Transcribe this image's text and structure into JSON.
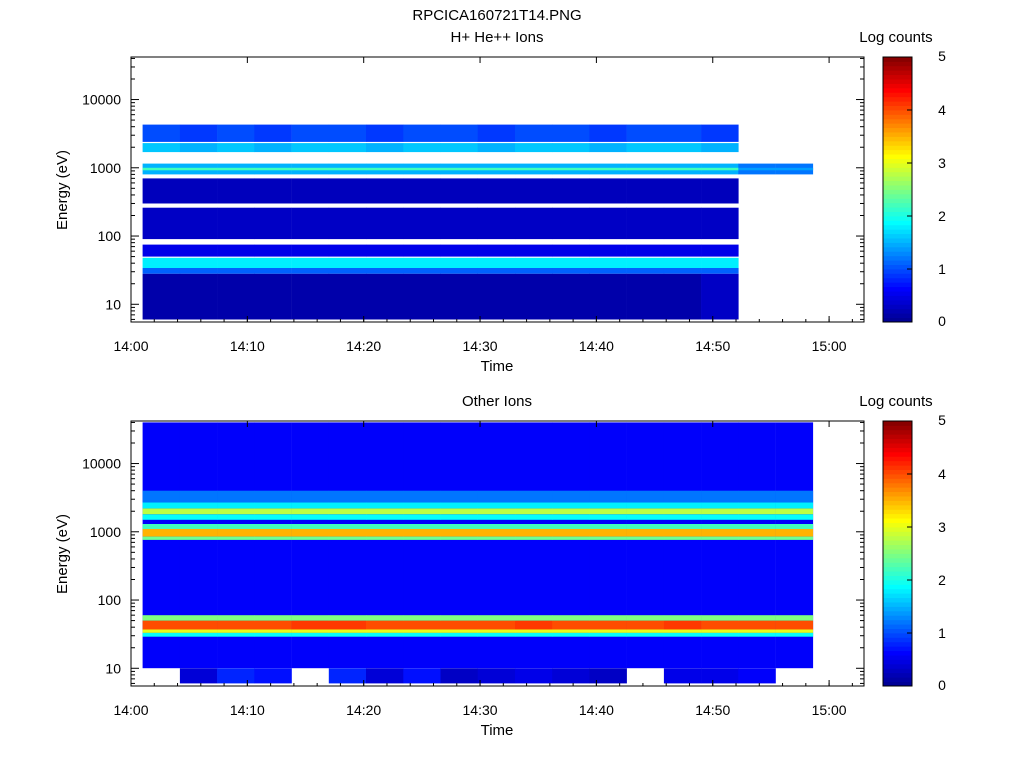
{
  "figure_title": "RPCICA160721T14.PNG",
  "colors": {
    "colormap": [
      "#00008f",
      "#0000ff",
      "#007fff",
      "#00ffff",
      "#7fff7f",
      "#ffff00",
      "#ff7f00",
      "#ff0000",
      "#7f0000"
    ],
    "axes": "#000000",
    "background": "#ffffff"
  },
  "chart_data": [
    {
      "type": "heatmap",
      "title": "H+ He++ Ions",
      "xlabel": "Time",
      "ylabel": "Energy (eV)",
      "y_scale": "log",
      "xlim": [
        "14:00",
        "15:03"
      ],
      "ylim": [
        5.5,
        42000
      ],
      "x_ticks": [
        "14:00",
        "14:10",
        "14:20",
        "14:30",
        "14:40",
        "14:50",
        "15:00"
      ],
      "y_ticks": [
        "10",
        "100",
        "1000",
        "10000"
      ],
      "colorbar": {
        "label": "Log counts",
        "range": [
          0,
          5
        ],
        "ticks": [
          "0",
          "1",
          "2",
          "3",
          "4",
          "5"
        ]
      },
      "time_bins": [
        "14:02:36",
        "14:05:48",
        "14:09:00",
        "14:12:12",
        "14:15:24",
        "14:18:36",
        "14:21:48",
        "14:25:00",
        "14:28:12",
        "14:31:24",
        "14:34:36",
        "14:37:48",
        "14:41:00",
        "14:44:12",
        "14:47:24",
        "14:50:36",
        "14:53:48",
        "14:57:00"
      ],
      "bands": [
        {
          "lo": 800,
          "hi": 1150,
          "log_counts": [
            1.5,
            1.5,
            1.5,
            1.5,
            1.5,
            1.5,
            1.5,
            1.5,
            1.5,
            1.5,
            1.5,
            1.5,
            1.5,
            1.5,
            1.5,
            1.5,
            1.2,
            1.2
          ]
        },
        {
          "lo": 920,
          "hi": 1000,
          "log_counts": [
            2.2,
            2.2,
            2.2,
            2.2,
            2.2,
            2.2,
            2.2,
            2.2,
            2.2,
            2.2,
            2.2,
            2.2,
            2.2,
            2.2,
            2.2,
            2.2,
            1.4,
            1.4
          ]
        },
        {
          "lo": 1700,
          "hi": 2300,
          "log_counts": [
            1.6,
            1.5,
            1.6,
            1.5,
            1.6,
            1.6,
            1.5,
            1.6,
            1.6,
            1.5,
            1.6,
            1.6,
            1.5,
            1.6,
            1.6,
            1.5,
            null,
            null
          ]
        },
        {
          "lo": 2400,
          "hi": 4300,
          "log_counts": [
            1.0,
            0.9,
            1.0,
            0.9,
            1.0,
            1.0,
            0.9,
            1.0,
            1.0,
            0.9,
            1.0,
            1.0,
            0.9,
            1.0,
            1.0,
            0.9,
            null,
            null
          ]
        },
        {
          "lo": 34,
          "hi": 48,
          "log_counts": [
            1.8,
            1.8,
            1.8,
            1.8,
            1.8,
            1.8,
            1.8,
            1.8,
            1.8,
            1.8,
            1.8,
            1.8,
            1.8,
            1.8,
            1.8,
            1.8,
            null,
            null
          ]
        },
        {
          "lo": 28,
          "hi": 34,
          "log_counts": [
            1.1,
            1.1,
            1.1,
            1.1,
            1.1,
            1.1,
            1.1,
            1.1,
            1.1,
            1.1,
            1.1,
            1.1,
            1.1,
            1.1,
            1.1,
            1.1,
            null,
            null
          ]
        },
        {
          "lo": 50,
          "hi": 75,
          "log_counts": [
            0.5,
            0.5,
            0.5,
            0.5,
            0.5,
            0.5,
            0.5,
            0.5,
            0.5,
            0.5,
            0.5,
            0.5,
            0.5,
            0.5,
            0.5,
            0.5,
            null,
            null
          ]
        },
        {
          "lo": 90,
          "hi": 260,
          "log_counts": [
            0.3,
            0.3,
            0.3,
            0.3,
            0.3,
            0.3,
            0.3,
            0.3,
            0.3,
            0.3,
            0.3,
            0.3,
            0.3,
            0.3,
            0.3,
            0.3,
            null,
            null
          ]
        },
        {
          "lo": 300,
          "hi": 700,
          "log_counts": [
            0.25,
            0.25,
            0.25,
            0.25,
            0.25,
            0.25,
            0.25,
            0.25,
            0.25,
            0.25,
            0.25,
            0.25,
            0.25,
            0.25,
            0.25,
            0.25,
            null,
            null
          ]
        },
        {
          "lo": 6,
          "hi": 28,
          "log_counts": [
            0.15,
            0.15,
            0.15,
            0.15,
            0.15,
            0.15,
            0.15,
            0.15,
            0.15,
            0.15,
            0.15,
            0.15,
            0.15,
            0.15,
            0.15,
            0.3,
            null,
            null
          ]
        }
      ]
    },
    {
      "type": "heatmap",
      "title": "Other Ions",
      "xlabel": "Time",
      "ylabel": "Energy (eV)",
      "y_scale": "log",
      "xlim": [
        "14:00",
        "15:03"
      ],
      "ylim": [
        5.5,
        42000
      ],
      "x_ticks": [
        "14:00",
        "14:10",
        "14:20",
        "14:30",
        "14:40",
        "14:50",
        "15:00"
      ],
      "y_ticks": [
        "10",
        "100",
        "1000",
        "10000"
      ],
      "colorbar": {
        "label": "Log counts",
        "range": [
          0,
          5
        ],
        "ticks": [
          "0",
          "1",
          "2",
          "3",
          "4",
          "5"
        ]
      },
      "time_bins": [
        "14:02:36",
        "14:05:48",
        "14:09:00",
        "14:12:12",
        "14:15:24",
        "14:18:36",
        "14:21:48",
        "14:25:00",
        "14:28:12",
        "14:31:24",
        "14:34:36",
        "14:37:48",
        "14:41:00",
        "14:44:12",
        "14:47:24",
        "14:50:36",
        "14:53:48",
        "14:57:00"
      ],
      "bands": [
        {
          "lo": 10,
          "hi": 40000,
          "log_counts": [
            0.6,
            0.6,
            0.6,
            0.6,
            0.6,
            0.6,
            0.6,
            0.6,
            0.6,
            0.6,
            0.6,
            0.6,
            0.6,
            0.6,
            0.6,
            0.6,
            0.6,
            0.6
          ]
        },
        {
          "lo": 37,
          "hi": 50,
          "log_counts": [
            4.0,
            4.0,
            4.0,
            4.0,
            4.1,
            4.1,
            4.0,
            4.0,
            4.0,
            4.0,
            4.1,
            4.0,
            4.0,
            4.0,
            4.1,
            4.0,
            4.0,
            4.0
          ]
        },
        {
          "lo": 33,
          "hi": 37,
          "log_counts": [
            3.0,
            3.0,
            3.0,
            3.0,
            3.0,
            3.0,
            3.0,
            3.0,
            3.0,
            3.0,
            3.0,
            3.0,
            3.0,
            3.0,
            3.0,
            3.0,
            3.0,
            3.0
          ]
        },
        {
          "lo": 50,
          "hi": 60,
          "log_counts": [
            2.5,
            2.5,
            2.5,
            2.5,
            2.5,
            2.5,
            2.5,
            2.5,
            2.5,
            2.5,
            2.5,
            2.5,
            2.5,
            2.5,
            2.5,
            2.5,
            2.5,
            2.5
          ]
        },
        {
          "lo": 29,
          "hi": 33,
          "log_counts": [
            1.9,
            1.9,
            1.9,
            1.9,
            1.9,
            1.9,
            1.9,
            1.9,
            1.9,
            1.9,
            1.9,
            1.9,
            1.9,
            1.9,
            1.9,
            1.9,
            1.9,
            1.9
          ]
        },
        {
          "lo": 850,
          "hi": 1100,
          "log_counts": [
            3.5,
            3.5,
            3.5,
            3.5,
            3.5,
            3.5,
            3.5,
            3.5,
            3.5,
            3.5,
            3.5,
            3.5,
            3.5,
            3.5,
            3.5,
            3.5,
            3.5,
            3.5
          ]
        },
        {
          "lo": 760,
          "hi": 850,
          "log_counts": [
            2.4,
            2.4,
            2.4,
            2.4,
            2.4,
            2.4,
            2.4,
            2.4,
            2.4,
            2.4,
            2.4,
            2.4,
            2.4,
            2.4,
            2.4,
            2.4,
            2.4,
            2.4
          ]
        },
        {
          "lo": 1100,
          "hi": 1300,
          "log_counts": [
            2.2,
            2.2,
            2.2,
            2.2,
            2.2,
            2.2,
            2.2,
            2.2,
            2.2,
            2.2,
            2.2,
            2.2,
            2.2,
            2.2,
            2.2,
            2.2,
            2.2,
            2.2
          ]
        },
        {
          "lo": 1800,
          "hi": 2200,
          "log_counts": [
            2.8,
            2.8,
            2.8,
            2.8,
            2.8,
            2.8,
            2.8,
            2.8,
            2.8,
            2.8,
            2.8,
            2.8,
            2.8,
            2.8,
            2.8,
            2.8,
            2.8,
            2.8
          ]
        },
        {
          "lo": 1500,
          "hi": 1800,
          "log_counts": [
            1.9,
            1.9,
            1.9,
            1.9,
            1.9,
            1.9,
            1.9,
            1.9,
            1.9,
            1.9,
            1.9,
            1.9,
            1.9,
            1.9,
            1.9,
            1.9,
            1.9,
            1.9
          ]
        },
        {
          "lo": 2200,
          "hi": 2700,
          "log_counts": [
            1.8,
            1.8,
            1.8,
            1.8,
            1.8,
            1.8,
            1.8,
            1.8,
            1.8,
            1.8,
            1.8,
            1.8,
            1.8,
            1.8,
            1.8,
            1.8,
            1.8,
            1.8
          ]
        },
        {
          "lo": 2700,
          "hi": 4000,
          "log_counts": [
            1.2,
            1.2,
            1.2,
            1.2,
            1.2,
            1.2,
            1.2,
            1.2,
            1.2,
            1.2,
            1.2,
            1.2,
            1.2,
            1.2,
            1.2,
            1.2,
            1.2,
            1.2
          ]
        },
        {
          "lo": 6,
          "hi": 10,
          "log_counts": [
            null,
            0.4,
            0.8,
            0.7,
            null,
            0.8,
            0.4,
            0.7,
            0.3,
            0.4,
            0.5,
            0.4,
            0.3,
            null,
            0.5,
            0.5,
            0.6,
            null
          ]
        }
      ]
    }
  ]
}
